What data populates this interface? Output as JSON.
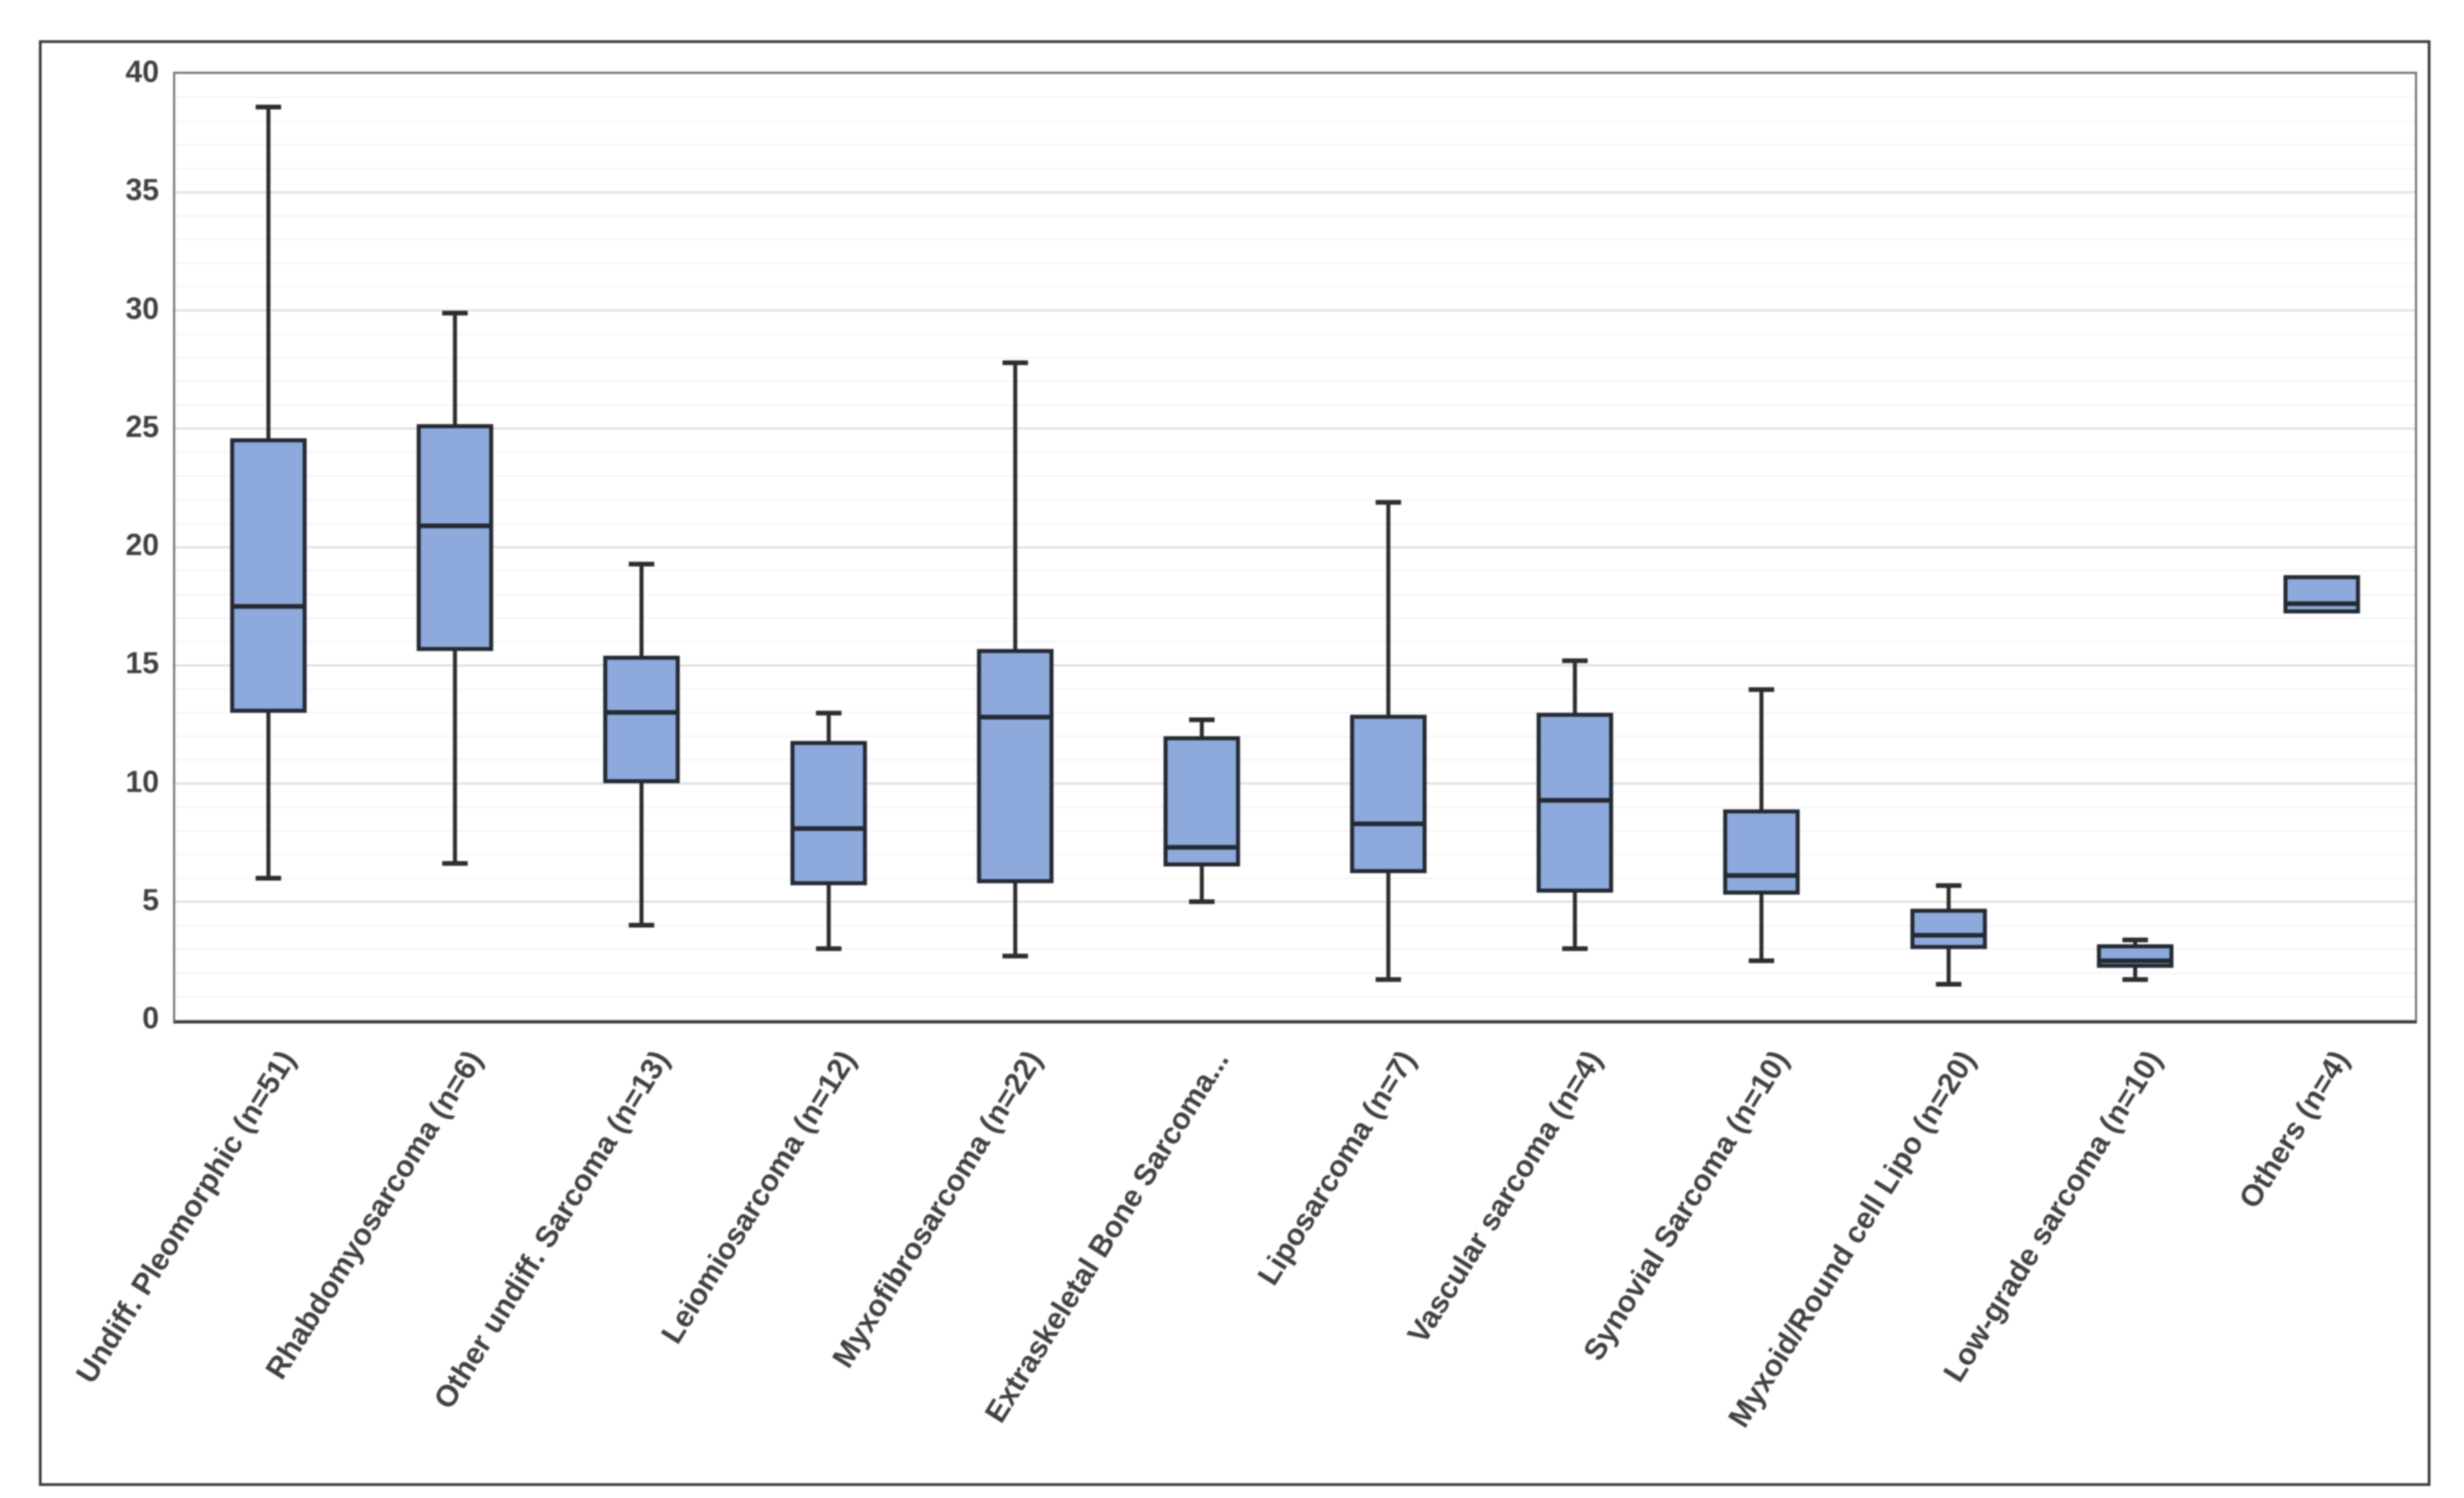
{
  "figure": {
    "background": "#ffffff",
    "frame_border_color": "#383838",
    "plot_border_color": "#6e6e6e",
    "axis_line_color": "#404040",
    "grid_minor_color": "#f2f2f2",
    "grid_major_color": "#e0e0e0",
    "axis_text_color": "#404040"
  },
  "chart_data": {
    "type": "box",
    "title": "",
    "xlabel": "",
    "ylabel": "",
    "ylim": [
      0,
      40
    ],
    "y_major_ticks": [
      0,
      5,
      10,
      15,
      20,
      25,
      30,
      35,
      40
    ],
    "y_minor_step": 1,
    "grid": "horizontal, minor every 1, major every 5",
    "legend": "none",
    "box_fill": "#8EA9DB",
    "box_border": "#242a33",
    "whisker_color": "#2d2d2d",
    "categories": [
      "Undiff. Pleomorphic (n=51)",
      "Rhabdomyosarcoma (n=6)",
      "Other undiff. Sarcoma (n=13)",
      "Leiomiosarcoma (n=12)",
      "Myxofibrosarcoma (n=22)",
      "Extraskeletal Bone Sarcoma...",
      "Liposarcoma (n=7)",
      "Vascular sarcoma (n=4)",
      "Synovial Sarcoma (n=10)",
      "Myxoid/Round cell Lipo (n=20)",
      "Low-grade sarcoma (n=10)",
      "Others (n=4)"
    ],
    "boxes": [
      {
        "min": 6.0,
        "q1": 13.0,
        "median": 17.5,
        "q3": 24.6,
        "max": 38.6
      },
      {
        "min": 6.6,
        "q1": 15.6,
        "median": 20.9,
        "q3": 25.2,
        "max": 29.9
      },
      {
        "min": 4.0,
        "q1": 10.0,
        "median": 13.0,
        "q3": 15.4,
        "max": 19.3
      },
      {
        "min": 3.0,
        "q1": 5.7,
        "median": 8.1,
        "q3": 11.8,
        "max": 13.0
      },
      {
        "min": 2.7,
        "q1": 5.8,
        "median": 12.8,
        "q3": 15.7,
        "max": 27.8
      },
      {
        "min": 5.0,
        "q1": 6.5,
        "median": 7.3,
        "q3": 12.0,
        "max": 12.7
      },
      {
        "min": 1.7,
        "q1": 6.2,
        "median": 8.3,
        "q3": 12.9,
        "max": 21.9
      },
      {
        "min": 3.0,
        "q1": 5.4,
        "median": 9.3,
        "q3": 13.0,
        "max": 15.2
      },
      {
        "min": 2.5,
        "q1": 5.3,
        "median": 6.1,
        "q3": 8.9,
        "max": 14.0
      },
      {
        "min": 1.5,
        "q1": 3.0,
        "median": 3.6,
        "q3": 4.7,
        "max": 5.7
      },
      {
        "min": 1.7,
        "q1": 2.2,
        "median": 2.5,
        "q3": 3.2,
        "max": 3.4
      },
      {
        "min": 17.2,
        "q1": 17.2,
        "median": 17.6,
        "q3": 18.8,
        "max": 18.8
      }
    ]
  }
}
